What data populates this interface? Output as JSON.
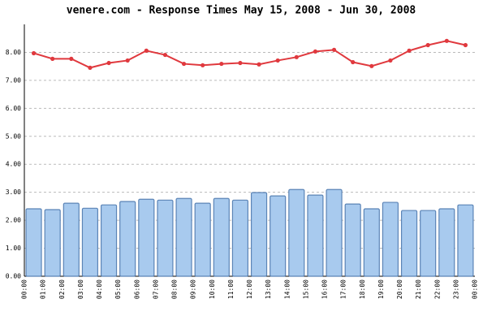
{
  "chart_data": {
    "type": "bar-line",
    "title": "venere.com - Response Times May 15, 2008 - Jun 30, 2008",
    "categories": [
      "00:00",
      "01:00",
      "02:00",
      "03:00",
      "04:00",
      "05:00",
      "06:00",
      "07:00",
      "08:00",
      "09:00",
      "10:00",
      "11:00",
      "12:00",
      "13:00",
      "14:00",
      "15:00",
      "16:00",
      "17:00",
      "18:00",
      "19:00",
      "20:00",
      "21:00",
      "22:00",
      "23:00"
    ],
    "xtick_labels": [
      "00:00",
      "01:00",
      "02:00",
      "03:00",
      "04:00",
      "05:00",
      "06:00",
      "07:00",
      "08:00",
      "09:00",
      "10:00",
      "11:00",
      "12:00",
      "13:00",
      "14:00",
      "15:00",
      "16:00",
      "17:00",
      "18:00",
      "19:00",
      "20:00",
      "21:00",
      "22:00",
      "23:00",
      "00:00"
    ],
    "series": [
      {
        "type": "bar",
        "color": "#a8caee",
        "edge_color": "#5b84b6",
        "values": [
          2.41,
          2.38,
          2.61,
          2.43,
          2.55,
          2.67,
          2.75,
          2.72,
          2.78,
          2.61,
          2.78,
          2.72,
          2.99,
          2.87,
          3.1,
          2.9,
          3.1,
          2.58,
          2.41,
          2.64,
          2.35,
          2.35,
          2.41,
          2.55
        ]
      },
      {
        "type": "line",
        "color": "#e0393e",
        "values": [
          7.97,
          7.77,
          7.77,
          7.45,
          7.62,
          7.71,
          8.06,
          7.91,
          7.59,
          7.54,
          7.59,
          7.62,
          7.57,
          7.71,
          7.83,
          8.03,
          8.09,
          7.65,
          7.51,
          7.71,
          8.06,
          8.26,
          8.41,
          8.26
        ]
      }
    ],
    "ylim": [
      0,
      9
    ],
    "yticks": [
      {
        "value": 0,
        "label": "0.00"
      },
      {
        "value": 1,
        "label": "1.00"
      },
      {
        "value": 2,
        "label": "2.00"
      },
      {
        "value": 3,
        "label": "3.00"
      },
      {
        "value": 4,
        "label": "4.00"
      },
      {
        "value": 5,
        "label": "5.00"
      },
      {
        "value": 6,
        "label": "6.00"
      },
      {
        "value": 7,
        "label": "7.00"
      },
      {
        "value": 8,
        "label": "8.00"
      }
    ],
    "grid": true
  }
}
